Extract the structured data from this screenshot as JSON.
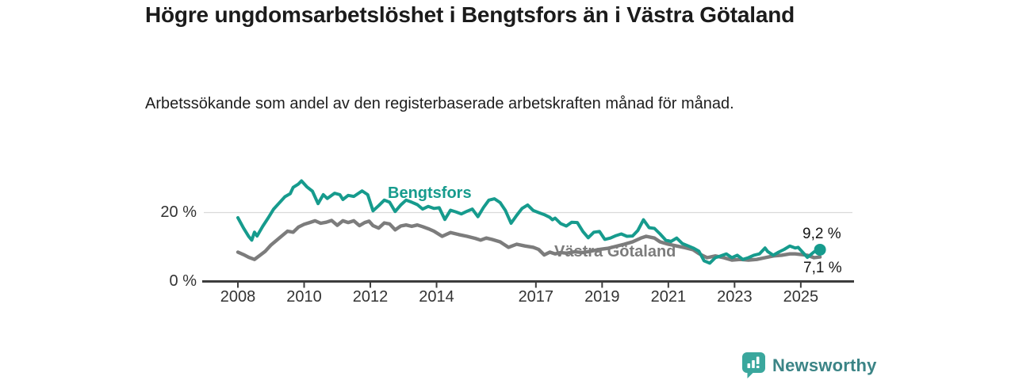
{
  "header": {
    "title": "Högre ungdomsarbetslöshet i Bengtsfors än i Västra Götaland",
    "subtitle": "Arbetssökande som andel av den registerbaserade arbetskraften månad för månad."
  },
  "chart_data": {
    "type": "line",
    "title": "Högre ungdomsarbetslöshet i Bengtsfors än i Västra Götaland",
    "subtitle": "Arbetssökande som andel av den registerbaserade arbetskraften månad för månad.",
    "unit": "%",
    "x_range": [
      2006.97,
      2026.56
    ],
    "ylim": [
      0,
      31
    ],
    "grid": "y-20-only",
    "x_ticks": [
      2008,
      2010,
      2012,
      2014,
      2017,
      2019,
      2021,
      2023,
      2025
    ],
    "y_ticks": [
      {
        "value": 0,
        "label": "0 %"
      },
      {
        "value": 20,
        "label": "20 %"
      }
    ],
    "colors": {
      "gridline": "#d9d9d9",
      "axis": "#3d3d3d",
      "tick_text": "#333333"
    },
    "series": [
      {
        "name": "Bengtsfors",
        "color": "#169b8d",
        "end_label": "9,2 %",
        "end_value": 9.2,
        "end_dot": true,
        "points": [
          [
            2008.0,
            18.5
          ],
          [
            2008.17,
            15.5
          ],
          [
            2008.33,
            13.0
          ],
          [
            2008.42,
            12.0
          ],
          [
            2008.5,
            14.3
          ],
          [
            2008.58,
            13.2
          ],
          [
            2008.75,
            16.0
          ],
          [
            2008.92,
            18.5
          ],
          [
            2009.08,
            21.0
          ],
          [
            2009.25,
            22.8
          ],
          [
            2009.42,
            24.6
          ],
          [
            2009.58,
            25.5
          ],
          [
            2009.67,
            27.3
          ],
          [
            2009.83,
            28.3
          ],
          [
            2009.92,
            29.2
          ],
          [
            2010.08,
            27.5
          ],
          [
            2010.25,
            26.2
          ],
          [
            2010.42,
            22.6
          ],
          [
            2010.58,
            25.2
          ],
          [
            2010.7,
            24.1
          ],
          [
            2010.92,
            25.6
          ],
          [
            2011.08,
            25.2
          ],
          [
            2011.17,
            23.8
          ],
          [
            2011.33,
            25.0
          ],
          [
            2011.5,
            24.7
          ],
          [
            2011.75,
            26.3
          ],
          [
            2011.92,
            25.2
          ],
          [
            2012.08,
            20.5
          ],
          [
            2012.25,
            22.0
          ],
          [
            2012.42,
            23.6
          ],
          [
            2012.58,
            23.0
          ],
          [
            2012.75,
            20.3
          ],
          [
            2012.92,
            22.2
          ],
          [
            2013.08,
            23.6
          ],
          [
            2013.25,
            23.0
          ],
          [
            2013.42,
            22.3
          ],
          [
            2013.58,
            21.0
          ],
          [
            2013.75,
            21.8
          ],
          [
            2013.92,
            21.2
          ],
          [
            2014.08,
            21.4
          ],
          [
            2014.25,
            18.0
          ],
          [
            2014.42,
            20.7
          ],
          [
            2014.58,
            20.2
          ],
          [
            2014.75,
            19.6
          ],
          [
            2014.92,
            20.4
          ],
          [
            2015.08,
            21.0
          ],
          [
            2015.25,
            18.8
          ],
          [
            2015.42,
            21.5
          ],
          [
            2015.58,
            23.6
          ],
          [
            2015.75,
            24.0
          ],
          [
            2015.92,
            22.9
          ],
          [
            2016.08,
            20.6
          ],
          [
            2016.25,
            16.9
          ],
          [
            2016.42,
            19.2
          ],
          [
            2016.58,
            21.2
          ],
          [
            2016.75,
            22.2
          ],
          [
            2016.92,
            20.6
          ],
          [
            2017.08,
            20.0
          ],
          [
            2017.25,
            19.4
          ],
          [
            2017.42,
            18.6
          ],
          [
            2017.5,
            17.9
          ],
          [
            2017.58,
            18.4
          ],
          [
            2017.75,
            16.8
          ],
          [
            2017.92,
            16.1
          ],
          [
            2018.08,
            17.2
          ],
          [
            2018.25,
            17.1
          ],
          [
            2018.42,
            14.5
          ],
          [
            2018.58,
            12.7
          ],
          [
            2018.75,
            14.3
          ],
          [
            2018.92,
            14.5
          ],
          [
            2019.08,
            12.2
          ],
          [
            2019.25,
            12.6
          ],
          [
            2019.42,
            13.3
          ],
          [
            2019.58,
            13.8
          ],
          [
            2019.75,
            13.1
          ],
          [
            2019.92,
            13.2
          ],
          [
            2020.08,
            14.8
          ],
          [
            2020.25,
            17.9
          ],
          [
            2020.42,
            15.6
          ],
          [
            2020.58,
            15.4
          ],
          [
            2020.75,
            13.8
          ],
          [
            2020.92,
            12.0
          ],
          [
            2021.08,
            11.6
          ],
          [
            2021.25,
            12.6
          ],
          [
            2021.42,
            11.0
          ],
          [
            2021.58,
            10.4
          ],
          [
            2021.75,
            9.7
          ],
          [
            2021.92,
            8.8
          ],
          [
            2022.08,
            6.0
          ],
          [
            2022.25,
            5.3
          ],
          [
            2022.42,
            6.9
          ],
          [
            2022.58,
            7.4
          ],
          [
            2022.75,
            8.0
          ],
          [
            2022.92,
            6.9
          ],
          [
            2023.08,
            7.6
          ],
          [
            2023.25,
            6.4
          ],
          [
            2023.42,
            6.9
          ],
          [
            2023.58,
            7.6
          ],
          [
            2023.75,
            8.0
          ],
          [
            2023.92,
            9.7
          ],
          [
            2024.0,
            8.7
          ],
          [
            2024.17,
            7.6
          ],
          [
            2024.33,
            8.5
          ],
          [
            2024.5,
            9.3
          ],
          [
            2024.67,
            10.3
          ],
          [
            2024.83,
            9.7
          ],
          [
            2024.92,
            9.9
          ],
          [
            2025.2,
            7.0
          ],
          [
            2025.4,
            8.6
          ],
          [
            2025.58,
            9.2
          ]
        ]
      },
      {
        "name": "Västra Götaland",
        "color": "#7c7c7c",
        "end_label": "7,1 %",
        "end_value": 7.1,
        "end_dot": false,
        "points": [
          [
            2008.0,
            8.5
          ],
          [
            2008.17,
            7.8
          ],
          [
            2008.33,
            7.0
          ],
          [
            2008.5,
            6.4
          ],
          [
            2008.67,
            7.6
          ],
          [
            2008.83,
            8.8
          ],
          [
            2009.0,
            10.6
          ],
          [
            2009.25,
            12.6
          ],
          [
            2009.5,
            14.6
          ],
          [
            2009.67,
            14.3
          ],
          [
            2009.83,
            15.8
          ],
          [
            2010.0,
            16.6
          ],
          [
            2010.17,
            17.1
          ],
          [
            2010.33,
            17.6
          ],
          [
            2010.5,
            16.9
          ],
          [
            2010.67,
            17.2
          ],
          [
            2010.83,
            17.7
          ],
          [
            2011.0,
            16.3
          ],
          [
            2011.17,
            17.6
          ],
          [
            2011.33,
            17.1
          ],
          [
            2011.5,
            17.6
          ],
          [
            2011.67,
            16.2
          ],
          [
            2011.83,
            17.1
          ],
          [
            2011.96,
            17.5
          ],
          [
            2012.08,
            16.2
          ],
          [
            2012.25,
            15.5
          ],
          [
            2012.42,
            17.0
          ],
          [
            2012.58,
            16.7
          ],
          [
            2012.75,
            15.0
          ],
          [
            2012.92,
            16.1
          ],
          [
            2013.08,
            16.4
          ],
          [
            2013.25,
            16.0
          ],
          [
            2013.42,
            16.4
          ],
          [
            2013.58,
            15.9
          ],
          [
            2013.75,
            15.3
          ],
          [
            2013.92,
            14.6
          ],
          [
            2014.17,
            13.1
          ],
          [
            2014.42,
            14.2
          ],
          [
            2014.67,
            13.6
          ],
          [
            2014.92,
            13.1
          ],
          [
            2015.17,
            12.5
          ],
          [
            2015.33,
            12.0
          ],
          [
            2015.5,
            12.6
          ],
          [
            2015.67,
            12.2
          ],
          [
            2015.92,
            11.5
          ],
          [
            2016.17,
            9.9
          ],
          [
            2016.42,
            10.8
          ],
          [
            2016.67,
            10.3
          ],
          [
            2016.92,
            9.9
          ],
          [
            2017.08,
            9.3
          ],
          [
            2017.25,
            7.7
          ],
          [
            2017.42,
            8.5
          ],
          [
            2017.58,
            8.0
          ],
          [
            2017.75,
            8.4
          ],
          [
            2017.92,
            8.2
          ],
          [
            2018.17,
            8.6
          ],
          [
            2018.42,
            8.4
          ],
          [
            2018.67,
            8.8
          ],
          [
            2018.92,
            9.3
          ],
          [
            2019.17,
            9.6
          ],
          [
            2019.42,
            10.2
          ],
          [
            2019.67,
            10.8
          ],
          [
            2019.92,
            11.5
          ],
          [
            2020.17,
            12.6
          ],
          [
            2020.33,
            13.1
          ],
          [
            2020.58,
            12.6
          ],
          [
            2020.75,
            11.5
          ],
          [
            2021.0,
            10.8
          ],
          [
            2021.25,
            10.3
          ],
          [
            2021.5,
            9.8
          ],
          [
            2021.75,
            9.2
          ],
          [
            2021.92,
            8.1
          ],
          [
            2022.17,
            6.9
          ],
          [
            2022.42,
            7.4
          ],
          [
            2022.67,
            6.9
          ],
          [
            2022.92,
            6.2
          ],
          [
            2023.17,
            6.4
          ],
          [
            2023.42,
            6.2
          ],
          [
            2023.67,
            6.4
          ],
          [
            2023.92,
            6.9
          ],
          [
            2024.17,
            7.4
          ],
          [
            2024.42,
            7.6
          ],
          [
            2024.67,
            8.0
          ],
          [
            2024.83,
            8.0
          ],
          [
            2025.2,
            7.6
          ],
          [
            2025.4,
            6.9
          ],
          [
            2025.58,
            7.1
          ]
        ]
      }
    ]
  },
  "footer": {
    "brand": "Newsworthy",
    "icon": "bar-chart-speech-bubble-icon",
    "icon_color": "#3aa79d",
    "text_color": "#3b8486"
  }
}
